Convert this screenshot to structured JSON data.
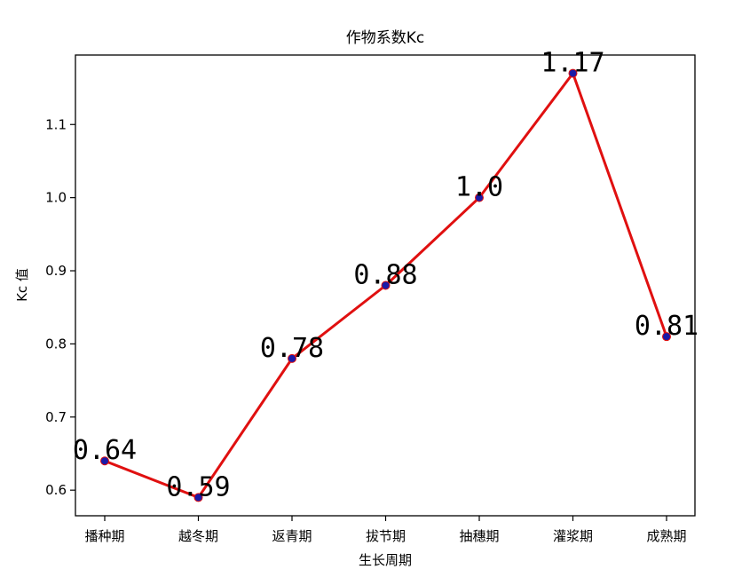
{
  "chart_data": {
    "type": "line",
    "title": "作物系数Kc",
    "xlabel": "生长周期",
    "ylabel": "Kc 值",
    "categories": [
      "播种期",
      "越冬期",
      "返青期",
      "拔节期",
      "抽穗期",
      "灌浆期",
      "成熟期"
    ],
    "values": [
      0.64,
      0.59,
      0.78,
      0.88,
      1.0,
      1.17,
      0.81
    ],
    "data_labels": [
      "0.64",
      "0.59",
      "0.78",
      "0.88",
      "1.0",
      "1.17",
      "0.81"
    ],
    "yticks": [
      0.6,
      0.7,
      0.8,
      0.9,
      1.0,
      1.1
    ],
    "ytick_labels": [
      "0.6",
      "0.7",
      "0.8",
      "0.9",
      "1.0",
      "1.1"
    ],
    "ylim": [
      0.565,
      1.195
    ],
    "grid": false,
    "line_color": "#e01010",
    "marker_color": "#1a1aa8"
  }
}
